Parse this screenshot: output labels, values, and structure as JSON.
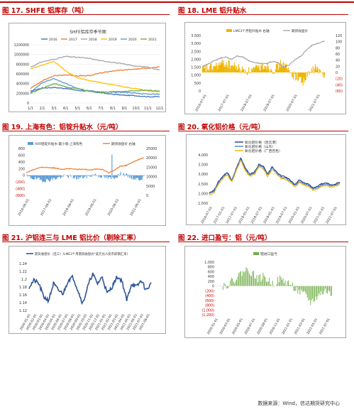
{
  "page": {
    "footer": "数据来源：Wind，信达期货研究中心"
  },
  "titles": {
    "c17": "图 17.  SHFE 铝库存（吨）",
    "c18": "图 18.  LME 铝升贴水",
    "c19": "图 19.  上海有色：铝锭升贴水（元/吨）",
    "c20": "图 20.  氧化铝价格（元/吨）",
    "c21": "图 21.  沪铝连三与 LME 铝比价（剔除汇率）",
    "c22": "图 22.  进口盈亏：铝（元/吨）"
  },
  "colors": {
    "title_red": "#c00000",
    "s2016": "#4472c4",
    "s2017": "#ed7d31",
    "s2018": "#a5a5a5",
    "s2019": "#ffc000",
    "s2020": "#5b9bd5",
    "s2021": "#70ad47",
    "gold": "#f0b400",
    "blue": "#4a86c8",
    "navy": "#1f3c88",
    "green": "#70ad47"
  },
  "chart_data": [
    {
      "id": "c17",
      "type": "line",
      "title": "SHFE铝库存季节图",
      "categories": [
        "1/1",
        "2/1",
        "3/1",
        "4/1",
        "5/1",
        "6/1",
        "7/1",
        "8/1",
        "9/1",
        "10/1",
        "11/1",
        "12/1"
      ],
      "ylim": [
        0,
        1200000
      ],
      "yticks": [
        "0",
        "200000",
        "400000",
        "600000",
        "800000",
        "1000000",
        "1200000"
      ],
      "series": [
        {
          "name": "2016",
          "color": "#4472c4",
          "values": [
            240000,
            310000,
            320000,
            300000,
            260000,
            240000,
            210000,
            180000,
            160000,
            150000,
            130000,
            130000
          ]
        },
        {
          "name": "2017",
          "color": "#ed7d31",
          "values": [
            300000,
            460000,
            560000,
            580000,
            560000,
            560000,
            620000,
            660000,
            680000,
            700000,
            720000,
            740000
          ]
        },
        {
          "name": "2018",
          "color": "#a5a5a5",
          "values": [
            740000,
            850000,
            900000,
            960000,
            940000,
            920000,
            870000,
            840000,
            800000,
            760000,
            740000,
            680000
          ]
        },
        {
          "name": "2019",
          "color": "#ffc000",
          "values": [
            700000,
            780000,
            860000,
            660000,
            520000,
            460000,
            420000,
            380000,
            330000,
            300000,
            250000,
            230000
          ]
        },
        {
          "name": "2020",
          "color": "#5b9bd5",
          "values": [
            220000,
            420000,
            500000,
            400000,
            300000,
            250000,
            230000,
            220000,
            220000,
            200000,
            180000,
            180000
          ]
        },
        {
          "name": "2021",
          "color": "#70ad47",
          "values": [
            200000,
            300000,
            400000,
            330000,
            300000,
            240000,
            220000,
            230000,
            240000,
            250000,
            260000,
            250000
          ]
        }
      ]
    },
    {
      "id": "c18",
      "type": "bar",
      "series_names": [
        "LME3个月铝升贴水 右轴",
        "期货收盘价"
      ],
      "x": [
        "2016-07-01",
        "2017-07-01",
        "2018-07-01",
        "2019-07-01",
        "2020-07-01",
        "2021-07-01"
      ],
      "ylim_left": [
        0,
        3500
      ],
      "yticks_left": [
        "0",
        "500",
        "1,000",
        "1,500",
        "2,000",
        "2,500",
        "3,000",
        "3,500"
      ],
      "ylim_right": [
        -60,
        120
      ],
      "yticks_right": [
        "120",
        "100",
        "80",
        "60",
        "40",
        "20",
        "0",
        "(20)",
        "(40)",
        "(60)"
      ]
    },
    {
      "id": "c19",
      "type": "bar",
      "series_names": [
        "A00铝锭升贴水:最小值:上海有色",
        "期货收盘价 右轴"
      ],
      "x": [
        "2016-06-01",
        "2017-06-01",
        "2018-06-01",
        "2019-06-01",
        "2020-06-01",
        "2021-06-01"
      ],
      "ylim_left": [
        -600,
        800
      ],
      "yticks_left": [
        "800",
        "600",
        "400",
        "200",
        "0",
        "(200)",
        "(400)",
        "(600)"
      ],
      "ylim_right": [
        0,
        25000
      ],
      "yticks_right": [
        "25000",
        "20000",
        "15000",
        "10000",
        "5000",
        "0"
      ]
    },
    {
      "id": "c20",
      "type": "line",
      "x": [
        "2016-07-01",
        "2017-01-01",
        "2017-07-01",
        "2018-01-01",
        "2018-07-01",
        "2019-01-01",
        "2019-07-01",
        "2020-01-01",
        "2020-07-01",
        "2021-01-01",
        "2021-07-01"
      ],
      "ylim": [
        1500,
        4000
      ],
      "yticks": [
        "4,000",
        "3,500",
        "3,000",
        "2,500",
        "2,000",
        "1,500"
      ],
      "series": [
        {
          "name": "氧化铝价格（连云港）",
          "color": "#1f3c88",
          "values": [
            2100,
            2700,
            3100,
            3900,
            3300,
            3300,
            3100,
            2500,
            2350,
            2600,
            2500
          ]
        },
        {
          "name": "氧化铝价格（山东）",
          "color": "#4a86c8",
          "values": [
            2050,
            2650,
            3000,
            3800,
            3200,
            3200,
            3000,
            2450,
            2300,
            2550,
            2450
          ]
        },
        {
          "name": "氧化铝价格（广西百色）",
          "color": "#f0b400",
          "values": [
            2000,
            2600,
            2950,
            3700,
            3100,
            3100,
            2950,
            2400,
            2250,
            2500,
            2400
          ]
        }
      ]
    },
    {
      "id": "c21",
      "type": "line",
      "series": [
        {
          "name": "期货收盘价（连三）/LME3个月期货收盘价*美元兑人民币即期汇率）",
          "color": "#2f5597"
        }
      ],
      "x": [
        "2020-01-01",
        "2020-02-01",
        "2020-03-01",
        "2020-04-01",
        "2020-05-01",
        "2020-06-01",
        "2020-07-01",
        "2020-08-01",
        "2020-09-01",
        "2020-10-01",
        "2020-11-01",
        "2020-12-01",
        "2021-01-01",
        "2021-02-01",
        "2021-03-01",
        "2021-04-01",
        "2021-05-01",
        "2021-06-01",
        "2021-07-01",
        "2021-08-01"
      ],
      "ylim": [
        1.12,
        1.26
      ],
      "yticks": [
        "1.24",
        "1.22",
        "1.2",
        "1.18",
        "1.16",
        "1.14",
        "1.12"
      ]
    },
    {
      "id": "c22",
      "type": "bar",
      "series": [
        {
          "name": "铝进口盈亏",
          "color": "#70ad47"
        }
      ],
      "x": [
        "2020-01-01",
        "2020-03-01",
        "2020-05-01",
        "2020-07-01",
        "2020-09-01",
        "2020-11-01",
        "2021-01-01",
        "2021-03-01",
        "2021-05-01",
        "2021-07-01"
      ],
      "ylim": [
        -1200,
        1000
      ],
      "yticks": [
        "1,000",
        "800",
        "600",
        "400",
        "200",
        "0",
        "(200)",
        "(400)",
        "(600)",
        "(800)",
        "(1,000)",
        "(1,200)"
      ]
    }
  ]
}
